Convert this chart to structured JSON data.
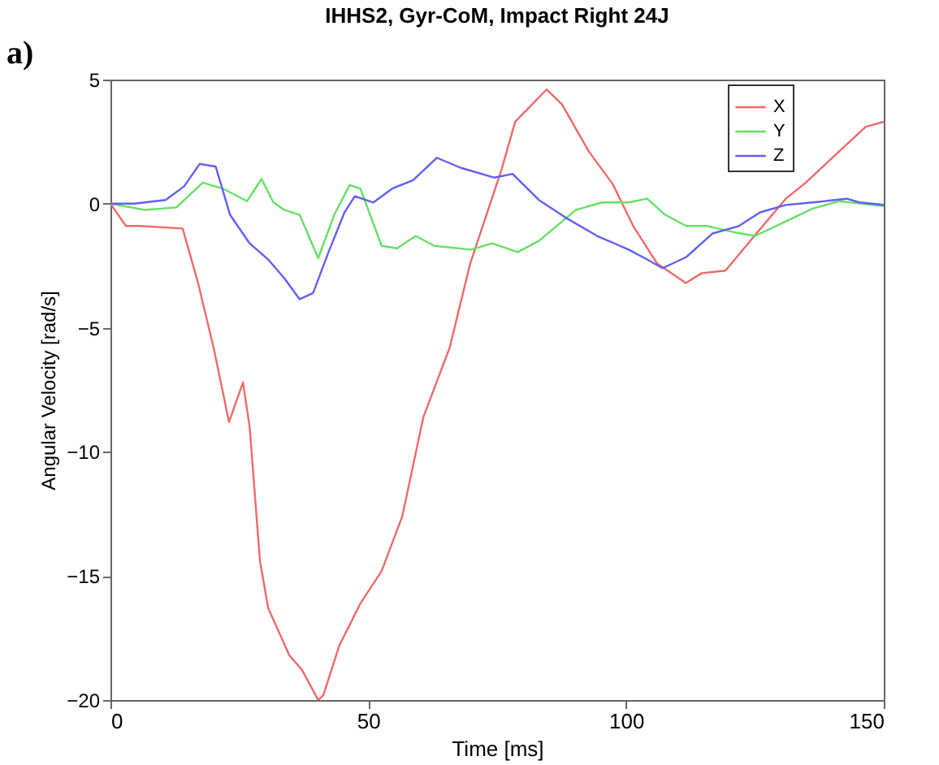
{
  "chart_data": {
    "type": "line",
    "title": "IHHS2, Gyr-CoM, Impact Right 24J",
    "xlabel": "Time [ms]",
    "ylabel": "Angular Velocity [rad/s]",
    "annotations": [
      "a)"
    ],
    "xlim": [
      0,
      150
    ],
    "xticks": [
      0,
      50,
      100,
      150
    ],
    "ylim": [
      -20,
      5
    ],
    "yticks": [
      -20,
      -15,
      -10,
      -5,
      0,
      5
    ],
    "grid": false,
    "legend": "top right",
    "line_style": "solid",
    "marker": "none",
    "series": [
      {
        "name": "X",
        "color": "#ee6a6a",
        "x": [
          0,
          3,
          5.6,
          14,
          17,
          20,
          23,
          25.7,
          27,
          29,
          30.6,
          34.7,
          37.2,
          40.3,
          41.3,
          44.4,
          48.5,
          52.6,
          56.6,
          60.7,
          65.8,
          69.8,
          75.9,
          78.5,
          84.6,
          87.6,
          92.8,
          97.4,
          101.4,
          106,
          111.6,
          114.7,
          119.3,
          124.9,
          131,
          134.6,
          146.5,
          150
        ],
        "values": [
          0,
          -0.9,
          -0.9,
          -1.0,
          -3.2,
          -5.8,
          -8.8,
          -7.2,
          -9,
          -14.4,
          -16.3,
          -18.2,
          -18.8,
          -20,
          -19.8,
          -17.8,
          -16.1,
          -14.8,
          -12.6,
          -8.6,
          -5.8,
          -2.4,
          1.4,
          3.3,
          4.6,
          4.0,
          2.1,
          0.8,
          -0.9,
          -2.4,
          -3.2,
          -2.8,
          -2.7,
          -1.3,
          0.2,
          0.8,
          3.1,
          3.3
        ]
      },
      {
        "name": "Y",
        "color": "#66e066",
        "x": [
          0,
          6.6,
          12.8,
          17.9,
          21.9,
          26.5,
          29.3,
          31.6,
          33.7,
          36.7,
          40.3,
          43.4,
          46.4,
          48.5,
          52.6,
          55.6,
          59.2,
          62.8,
          70,
          74,
          79,
          83.1,
          90.3,
          95.4,
          100.5,
          104.1,
          107.6,
          111.7,
          115.8,
          120.9,
          125,
          129.1,
          136.2,
          141.3,
          150
        ],
        "values": [
          0,
          -0.25,
          -0.15,
          0.85,
          0.6,
          0.1,
          1.0,
          0.05,
          -0.25,
          -0.45,
          -2.2,
          -0.45,
          0.75,
          0.6,
          -1.7,
          -1.8,
          -1.3,
          -1.7,
          -1.85,
          -1.6,
          -1.95,
          -1.5,
          -0.25,
          0.05,
          0.05,
          0.2,
          -0.45,
          -0.9,
          -0.9,
          -1.15,
          -1.3,
          -0.9,
          -0.2,
          0.1,
          -0.1
        ]
      },
      {
        "name": "Z",
        "color": "#6060f0",
        "x": [
          0,
          4.6,
          10.7,
          14.3,
          17.3,
          20.4,
          23.2,
          27,
          30.6,
          33.7,
          36.7,
          39.3,
          42.3,
          45.4,
          47.4,
          51,
          54.6,
          58.7,
          63.3,
          67.9,
          74.4,
          78,
          83.1,
          88.2,
          94.4,
          100.5,
          104.1,
          107.1,
          111.7,
          116.8,
          121.9,
          126,
          131,
          136.2,
          142.8,
          145.3,
          150
        ],
        "values": [
          0,
          0,
          0.15,
          0.7,
          1.6,
          1.5,
          -0.45,
          -1.6,
          -2.25,
          -3.0,
          -3.85,
          -3.6,
          -1.95,
          -0.35,
          0.3,
          0.05,
          0.6,
          0.95,
          1.85,
          1.45,
          1.05,
          1.2,
          0.15,
          -0.55,
          -1.3,
          -1.85,
          -2.25,
          -2.6,
          -2.15,
          -1.2,
          -0.9,
          -0.35,
          -0.05,
          0.05,
          0.2,
          0.05,
          -0.05
        ]
      }
    ]
  }
}
